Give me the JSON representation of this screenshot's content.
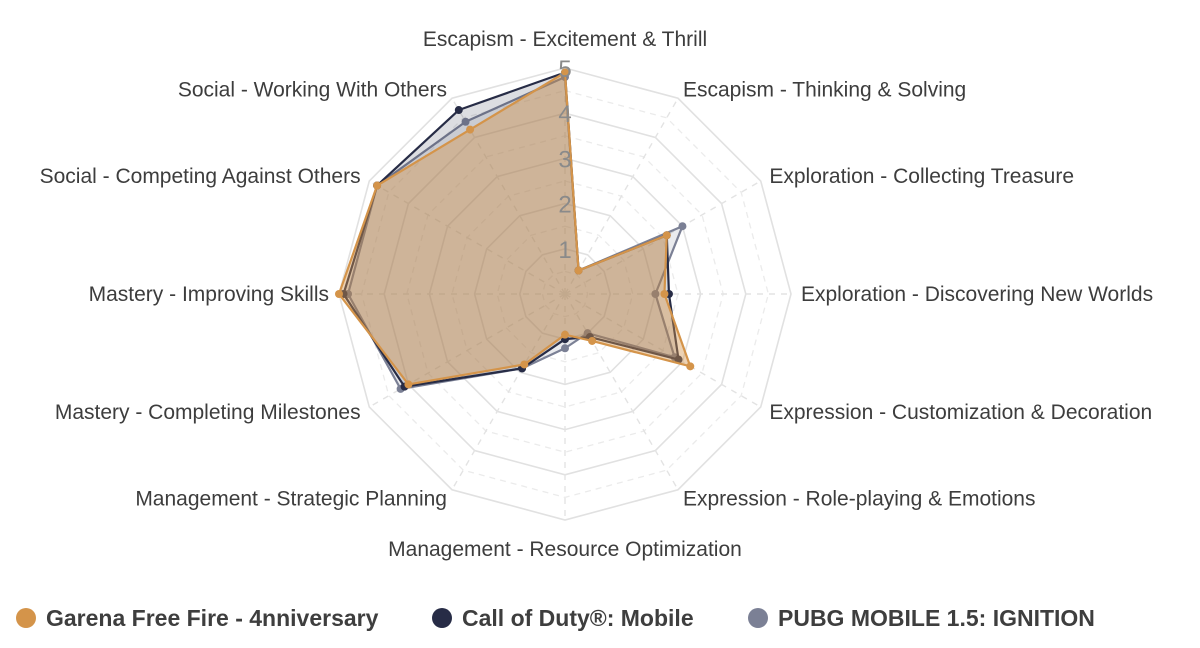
{
  "chart_data": {
    "type": "radar",
    "axes": [
      "Escapism - Excitement & Thrill",
      "Escapism - Thinking & Solving",
      "Exploration - Collecting Treasure",
      "Exploration - Discovering New Worlds",
      "Expression - Customization & Decoration",
      "Expression - Role-playing & Emotions",
      "Management - Resource Optimization",
      "Management - Strategic Planning",
      "Mastery - Completing Milestones",
      "Mastery - Improving Skills",
      "Social - Competing Against Others",
      "Social - Working With Others"
    ],
    "r_ticks": [
      "1",
      "2",
      "3",
      "4",
      "5"
    ],
    "rlim": [
      0,
      5
    ],
    "grid": true,
    "legend_position": "bottom",
    "series": [
      {
        "name": "Garena Free Fire - 4nniversary",
        "color": "#d4944a",
        "values": [
          4.9,
          0.6,
          2.6,
          2.2,
          3.2,
          1.2,
          0.9,
          1.8,
          4.0,
          5.0,
          4.8,
          4.2
        ]
      },
      {
        "name": "Call of Duty®: Mobile",
        "color": "#272c46",
        "values": [
          4.9,
          0.6,
          2.6,
          2.3,
          2.9,
          1.1,
          1.0,
          1.9,
          4.1,
          4.9,
          4.8,
          4.7
        ]
      },
      {
        "name": "PUBG MOBILE 1.5: IGNITION",
        "color": "#7b8095",
        "values": [
          4.8,
          0.6,
          3.0,
          2.0,
          2.8,
          1.0,
          1.2,
          1.9,
          4.2,
          4.8,
          4.8,
          4.4
        ]
      }
    ]
  }
}
